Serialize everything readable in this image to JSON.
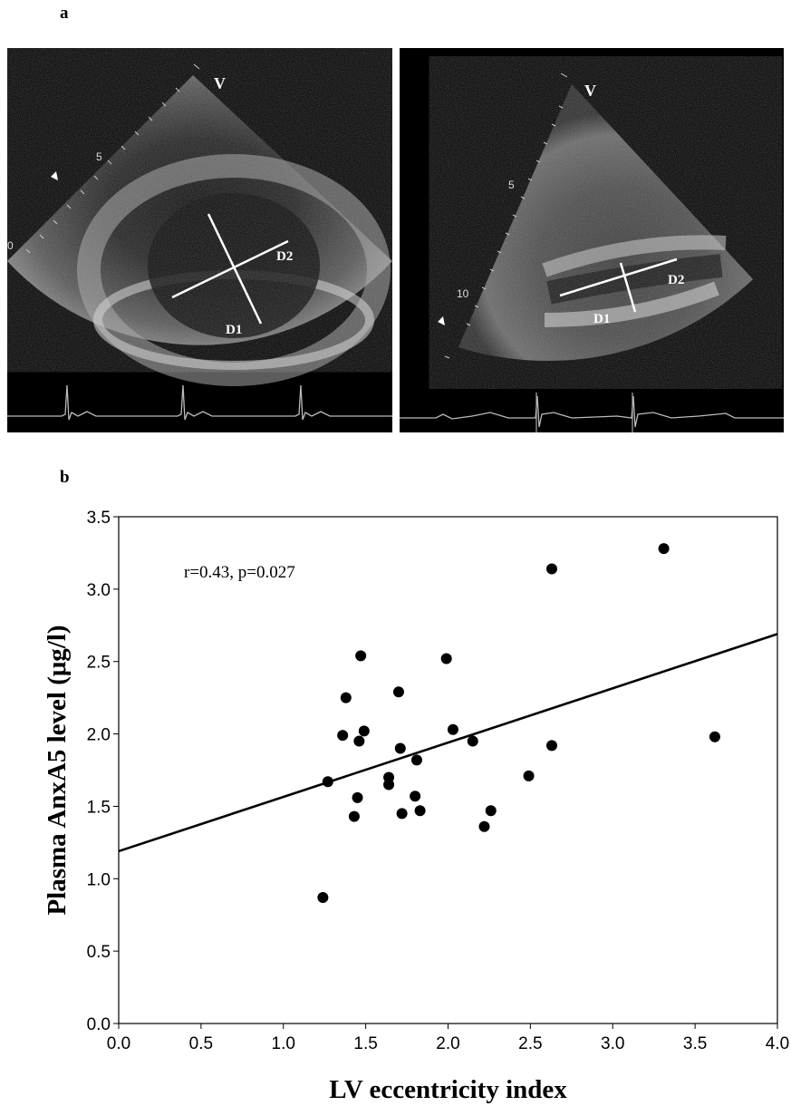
{
  "figure": {
    "panel_a_label": "a",
    "panel_b_label": "b"
  },
  "echo_left": {
    "apex_label": "V",
    "depth_labels": [
      "5",
      "0"
    ],
    "diameter_labels": [
      "D1",
      "D2"
    ]
  },
  "echo_right": {
    "apex_label": "V",
    "depth_labels": [
      "5",
      "10"
    ],
    "diameter_labels": [
      "D1",
      "D2"
    ]
  },
  "chart_data": {
    "type": "scatter",
    "xlabel": "LV eccentricity index",
    "ylabel": "Plasma AnxA5 level (μg/l)",
    "xlim": [
      0.0,
      4.0
    ],
    "ylim": [
      0.0,
      3.5
    ],
    "x_ticks": [
      "0.0",
      "0.5",
      "1.0",
      "1.5",
      "2.0",
      "2.5",
      "3.0",
      "3.5",
      "4.0"
    ],
    "y_ticks": [
      "0.0",
      "0.5",
      "1.0",
      "1.5",
      "2.0",
      "2.5",
      "3.0",
      "3.5"
    ],
    "annotation": "r=0.43, p=0.027",
    "grid": false,
    "points": [
      [
        1.24,
        0.87
      ],
      [
        1.27,
        1.67
      ],
      [
        1.36,
        1.99
      ],
      [
        1.38,
        2.25
      ],
      [
        1.43,
        1.43
      ],
      [
        1.45,
        1.56
      ],
      [
        1.46,
        1.95
      ],
      [
        1.47,
        2.54
      ],
      [
        1.49,
        2.02
      ],
      [
        1.64,
        1.7
      ],
      [
        1.64,
        1.65
      ],
      [
        1.7,
        2.29
      ],
      [
        1.71,
        1.9
      ],
      [
        1.72,
        1.45
      ],
      [
        1.8,
        1.57
      ],
      [
        1.81,
        1.82
      ],
      [
        1.83,
        1.47
      ],
      [
        1.99,
        2.52
      ],
      [
        2.03,
        2.03
      ],
      [
        2.15,
        1.95
      ],
      [
        2.22,
        1.36
      ],
      [
        2.26,
        1.47
      ],
      [
        2.49,
        1.71
      ],
      [
        2.63,
        3.14
      ],
      [
        2.63,
        1.92
      ],
      [
        3.31,
        3.28
      ],
      [
        3.62,
        1.98
      ]
    ],
    "regression": {
      "x": [
        0.0,
        4.0
      ],
      "y": [
        1.19,
        2.69
      ]
    }
  }
}
